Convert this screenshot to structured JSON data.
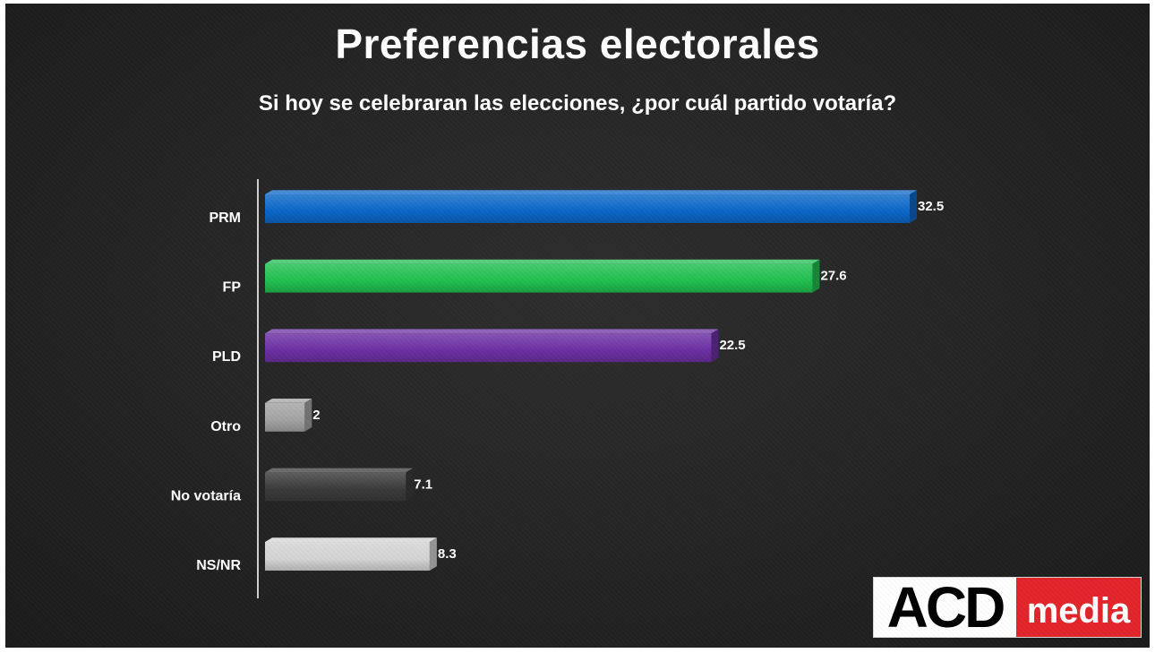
{
  "header": {
    "title": "Preferencias electorales",
    "subtitle": "Si hoy se celebraran las elecciones, ¿por cuál partido votaría?"
  },
  "logo": {
    "part1": "ACD",
    "part2": "media"
  },
  "chart_data": {
    "type": "bar",
    "orientation": "horizontal",
    "title": "Preferencias electorales",
    "subtitle": "Si hoy se celebraran las elecciones, ¿por cuál partido votaría?",
    "categories": [
      "PRM",
      "FP",
      "PLD",
      "Otro",
      "No votaría",
      "NS/NR"
    ],
    "values": [
      32.5,
      27.6,
      22.5,
      2,
      7.1,
      8.3
    ],
    "value_labels": [
      "32.5",
      "27.6",
      "22.5",
      "2",
      "7.1",
      "8.3"
    ],
    "colors": [
      "#0a66c8",
      "#1fbf4f",
      "#6b2fa3",
      "#a3a3a3",
      "#3a3a3a",
      "#d4d4d4"
    ],
    "xlim": [
      0,
      36
    ],
    "xlabel": "",
    "ylabel": "",
    "grid": false,
    "legend": "none"
  }
}
